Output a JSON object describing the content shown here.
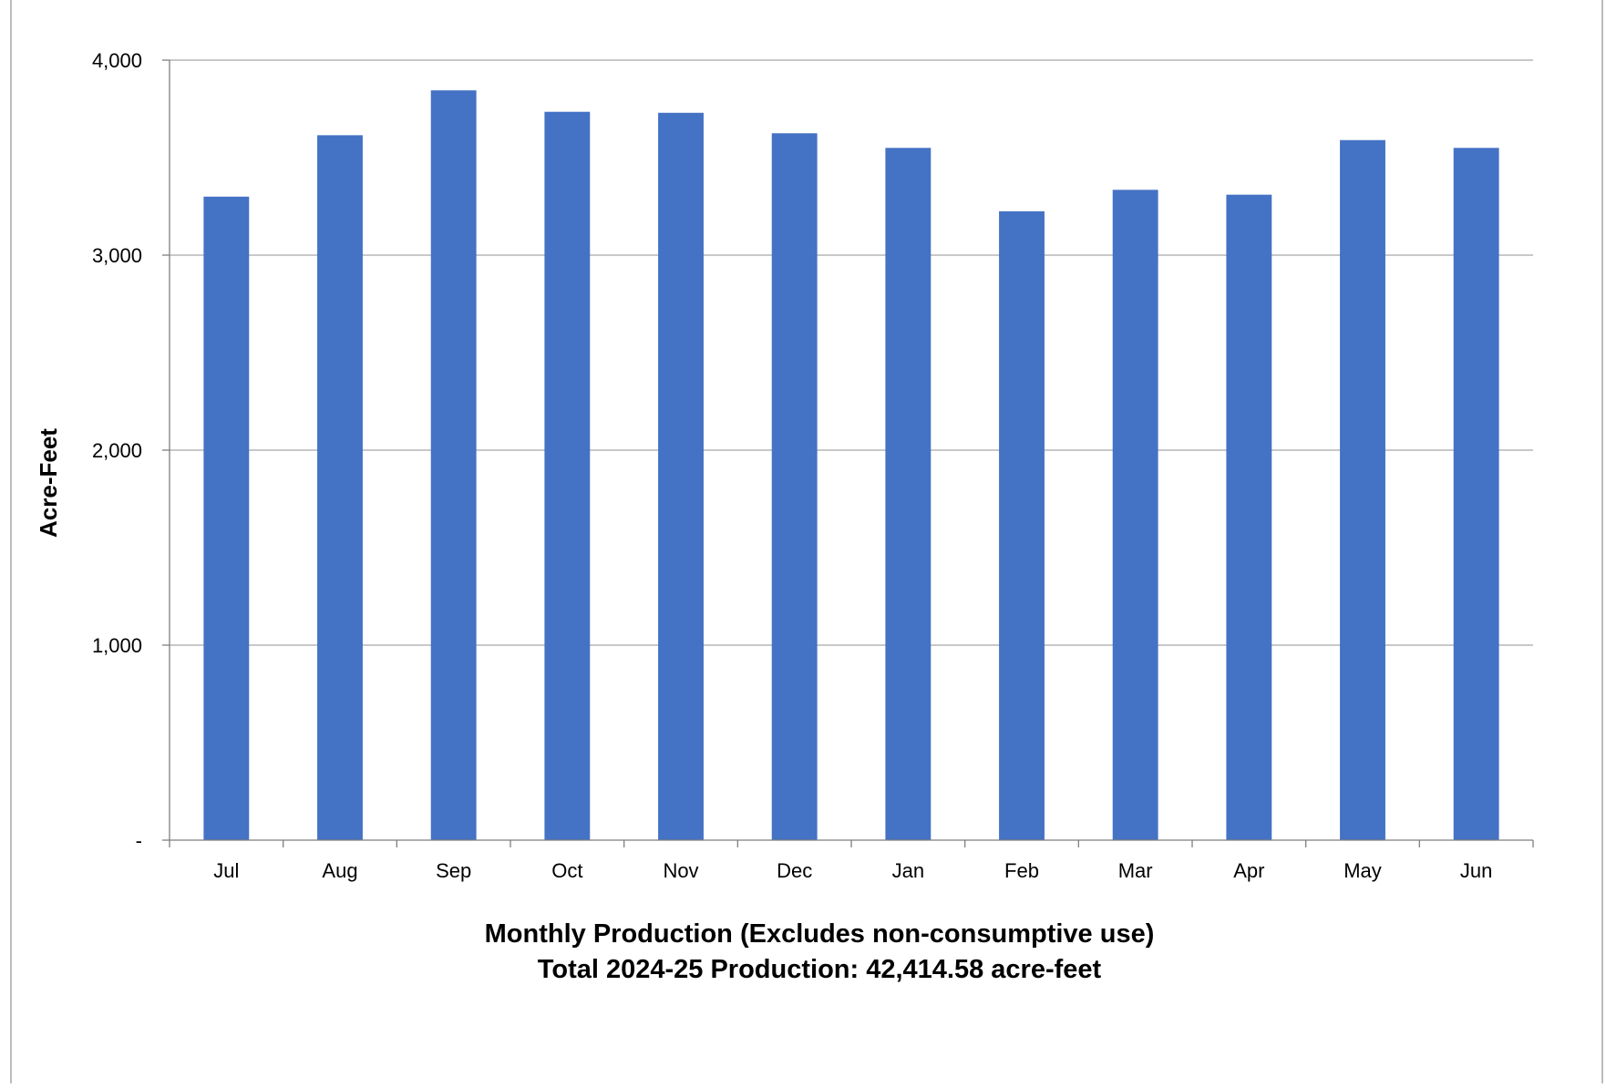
{
  "colors": {
    "bar": "#4472C4",
    "grid": "#A6A6A6",
    "axis": "#7F7F7F",
    "border": "#A6A6A6",
    "text": "#000000"
  },
  "chart_data": {
    "type": "bar",
    "categories": [
      "Jul",
      "Aug",
      "Sep",
      "Oct",
      "Nov",
      "Dec",
      "Jan",
      "Feb",
      "Mar",
      "Apr",
      "May",
      "Jun"
    ],
    "values": [
      3300,
      3615,
      3845,
      3735,
      3730,
      3625,
      3550,
      3225,
      3335,
      3310,
      3590,
      3550
    ],
    "ylabel": "Acre-Feet",
    "xlabel": "",
    "ylim": [
      0,
      4000
    ],
    "y_ticks": [
      0,
      1000,
      2000,
      3000,
      4000
    ],
    "y_tick_labels": [
      "-",
      "1,000",
      "2,000",
      "3,000",
      "4,000"
    ],
    "grid": true,
    "legend": "none",
    "caption_line1": "Monthly Production (Excludes non-consumptive use)",
    "caption_line2": "Total 2024-25 Production: 42,414.58 acre-feet"
  }
}
